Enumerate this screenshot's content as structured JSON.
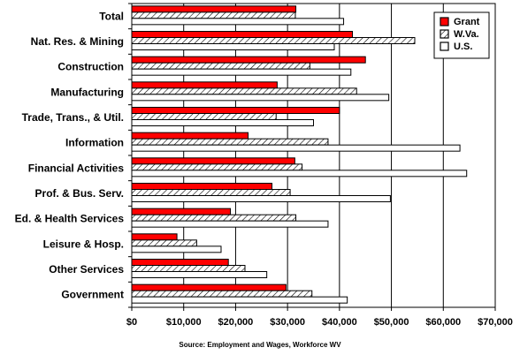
{
  "chart_data": {
    "type": "bar",
    "orientation": "horizontal",
    "categories": [
      "Total",
      "Nat. Res. & Mining",
      "Construction",
      "Manufacturing",
      "Trade, Trans., & Util.",
      "Information",
      "Financial Activities",
      "Prof. & Bus. Serv.",
      "Ed. & Health Services",
      "Leisure & Hosp.",
      "Other Services",
      "Government"
    ],
    "series": [
      {
        "name": "Grant",
        "color": "#ff0000",
        "pattern": "solid",
        "values": [
          31600,
          42500,
          45000,
          28000,
          40000,
          22400,
          31400,
          27000,
          19000,
          8700,
          18600,
          29700
        ]
      },
      {
        "name": "W.Va.",
        "color": "#ffffff",
        "pattern": "diagonal-hatch",
        "values": [
          31500,
          54500,
          34300,
          43300,
          27800,
          37800,
          32800,
          30500,
          31600,
          12500,
          21800,
          34700
        ]
      },
      {
        "name": "U.S.",
        "color": "#ffffff",
        "pattern": "outline",
        "values": [
          40800,
          39000,
          42200,
          49500,
          35000,
          63200,
          64500,
          49800,
          37800,
          17200,
          26000,
          41500
        ]
      }
    ],
    "xlim": [
      0,
      70000
    ],
    "xticks": [
      0,
      10000,
      20000,
      30000,
      40000,
      50000,
      60000,
      70000
    ],
    "xtick_labels": [
      "$0",
      "$10,000",
      "$20,000",
      "$30,000",
      "$40,000",
      "$50,000",
      "$60,000",
      "$70,000"
    ],
    "title": "",
    "xlabel": "",
    "ylabel": "",
    "grid": "vertical",
    "legend_position": "top-right"
  },
  "footer": {
    "source": "Source: Employment and Wages, Workforce WV"
  }
}
